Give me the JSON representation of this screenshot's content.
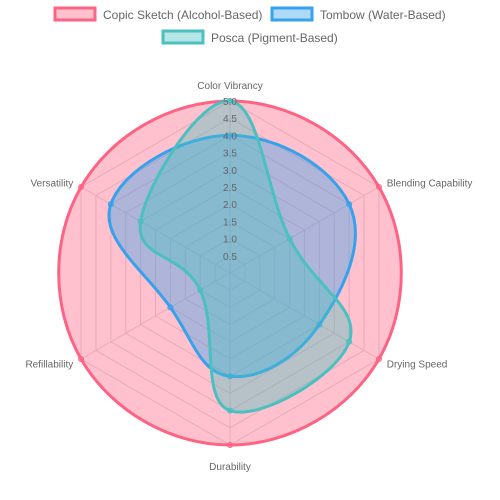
{
  "chart_data": {
    "type": "radar",
    "categories": [
      "Color Vibrancy",
      "Blending Capability",
      "Drying Speed",
      "Durability",
      "Refillability",
      "Versatility"
    ],
    "series": [
      {
        "name": "Copic Sketch (Alcohol-Based)",
        "values": [
          5,
          5,
          5,
          5,
          5,
          5
        ],
        "border": "#ff6384",
        "fill": "rgba(255,99,132,0.4)"
      },
      {
        "name": "Tombow (Water-Based)",
        "values": [
          4,
          4,
          3,
          3,
          2,
          4
        ],
        "border": "#36a2eb",
        "fill": "rgba(54,162,235,0.4)"
      },
      {
        "name": "Posca (Pigment-Based)",
        "values": [
          5,
          2,
          4,
          4,
          1,
          3
        ],
        "border": "#4bc0c0",
        "fill": "rgba(75,192,192,0.4)"
      }
    ],
    "rlim": [
      0,
      5
    ],
    "ticks": [
      "0.5",
      "1.0",
      "1.5",
      "2.0",
      "2.5",
      "3.0",
      "3.5",
      "4.0",
      "4.5",
      "5.0"
    ],
    "legend_position": "top"
  }
}
